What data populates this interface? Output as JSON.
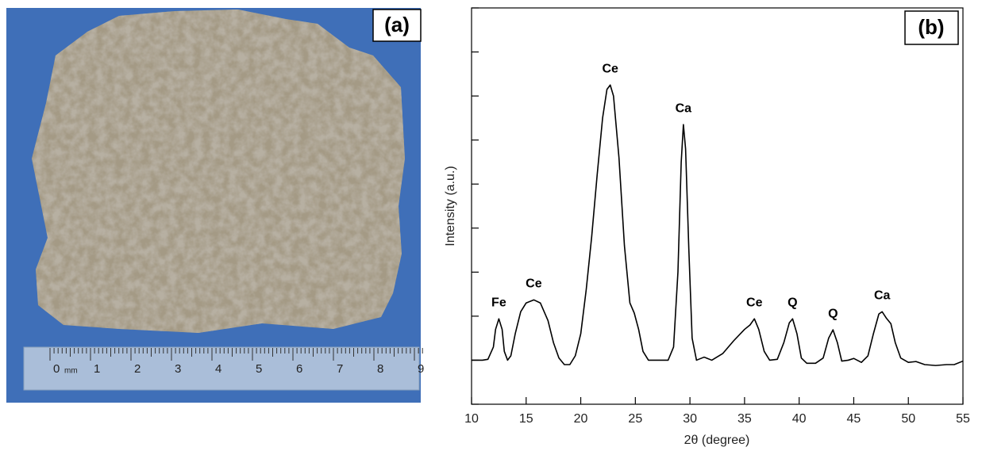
{
  "photo": {
    "panel_label": "(a)",
    "ruler_unit": "mm",
    "ruler_labels": [
      "0",
      "1",
      "2",
      "3",
      "4",
      "5",
      "6",
      "7",
      "8",
      "9"
    ]
  },
  "chart_data": {
    "type": "line",
    "panel_label": "(b)",
    "x_label": "2θ (degree)",
    "y_label": "Intensity (a.u.)",
    "color": "#000000",
    "x": [
      10,
      11,
      11.5,
      12,
      12.2,
      12.5,
      12.8,
      13,
      13.3,
      13.6,
      14,
      14.5,
      15,
      15.7,
      16.3,
      17,
      17.5,
      18,
      18.5,
      19,
      19.5,
      20,
      20.5,
      21,
      21.5,
      22,
      22.4,
      22.7,
      23,
      23.5,
      24,
      24.5,
      24.9,
      25.3,
      25.7,
      26.2,
      27,
      28,
      28.5,
      28.9,
      29.2,
      29.4,
      29.6,
      29.9,
      30.2,
      30.6,
      31.3,
      32,
      33,
      34,
      35,
      35.5,
      35.9,
      36.3,
      36.8,
      37.3,
      38,
      38.6,
      39.1,
      39.4,
      39.8,
      40.2,
      40.7,
      41.5,
      42.2,
      42.7,
      43.1,
      43.5,
      43.9,
      44.5,
      45,
      45.7,
      46.3,
      46.8,
      47.3,
      47.6,
      48,
      48.4,
      48.8,
      49.3,
      50,
      50.7,
      51.5,
      52.5,
      53.5,
      54.2,
      55
    ],
    "values": [
      1.0,
      1.0,
      1.02,
      1.3,
      1.7,
      1.94,
      1.7,
      1.2,
      1.0,
      1.1,
      1.6,
      2.1,
      2.3,
      2.37,
      2.3,
      1.9,
      1.4,
      1.05,
      0.9,
      0.9,
      1.1,
      1.6,
      2.6,
      3.8,
      5.2,
      6.5,
      7.15,
      7.25,
      7.0,
      5.6,
      3.6,
      2.3,
      2.07,
      1.7,
      1.2,
      1.0,
      1.0,
      1.0,
      1.3,
      3.0,
      5.5,
      6.35,
      5.8,
      3.5,
      1.5,
      1.0,
      1.07,
      1.0,
      1.15,
      1.44,
      1.7,
      1.8,
      1.94,
      1.7,
      1.2,
      1.0,
      1.02,
      1.4,
      1.85,
      1.94,
      1.6,
      1.05,
      0.93,
      0.93,
      1.05,
      1.5,
      1.69,
      1.4,
      0.98,
      1.0,
      1.04,
      0.95,
      1.1,
      1.6,
      2.05,
      2.1,
      1.95,
      1.83,
      1.4,
      1.05,
      0.95,
      0.97,
      0.9,
      0.88,
      0.9,
      0.9,
      0.98
    ],
    "annotations": [
      {
        "text": "Fe",
        "x": 12.5,
        "y": 1.94
      },
      {
        "text": "Ce",
        "x": 15.7,
        "y": 2.37
      },
      {
        "text": "Ce",
        "x": 22.7,
        "y": 7.25
      },
      {
        "text": "Ca",
        "x": 29.4,
        "y": 6.35
      },
      {
        "text": "Ce",
        "x": 35.9,
        "y": 1.94
      },
      {
        "text": "Q",
        "x": 39.4,
        "y": 1.94
      },
      {
        "text": "Q",
        "x": 43.1,
        "y": 1.69
      },
      {
        "text": "Ca",
        "x": 47.6,
        "y": 2.1
      }
    ],
    "xlim": [
      10,
      55
    ],
    "xticks": [
      10,
      15,
      20,
      25,
      30,
      35,
      40,
      45,
      50,
      55
    ],
    "ylim": [
      0,
      9
    ],
    "yticks": [
      0,
      1,
      2,
      3,
      4,
      5,
      6,
      7,
      8,
      9
    ]
  }
}
